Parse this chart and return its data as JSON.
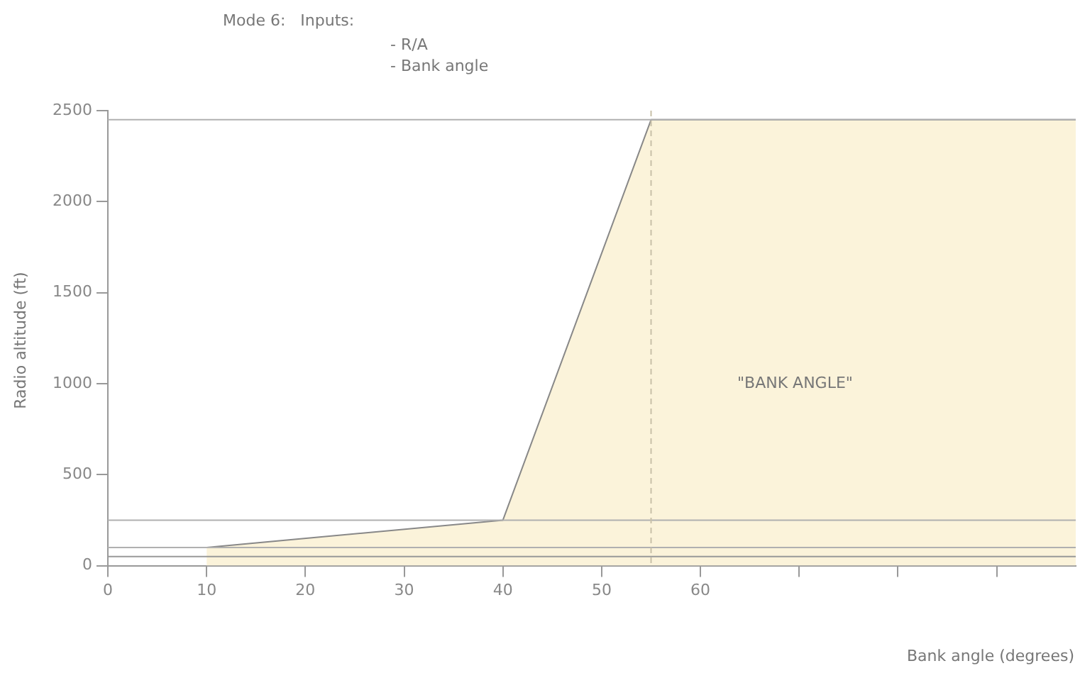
{
  "chart_data": {
    "type": "area",
    "title": "Mode 6:   Inputs:",
    "subtitle": "- R/A\n- Bank angle",
    "xlabel": "Bank angle (degrees)",
    "ylabel": "Radio altitude (ft)",
    "xlim": [
      0,
      98
    ],
    "xticks": [
      0,
      10,
      20,
      30,
      40,
      50,
      60,
      {
        "value": 70,
        "label": null
      },
      {
        "value": 80,
        "label": null
      },
      {
        "value": 90,
        "label": null
      }
    ],
    "ylim": [
      0,
      2500
    ],
    "yticks": [
      0,
      500,
      1000,
      1500,
      2000,
      2500
    ],
    "series": [
      {
        "color": "#fbf3da",
        "x": [
          10,
          40,
          55,
          98
        ],
        "values": [
          100,
          250,
          2450,
          2450
        ]
      }
    ],
    "ref_lines": [
      {
        "axis": "y",
        "value": 50,
        "color": "#999999"
      },
      {
        "axis": "y",
        "value": 100,
        "color": "#b0b0b0"
      },
      {
        "axis": "y",
        "value": 250,
        "color": "#b0b0b0"
      },
      {
        "axis": "y",
        "value": 2450,
        "color": "#b0b0b0"
      },
      {
        "axis": "x",
        "value": 55,
        "color": "#c8c0a8",
        "line_style": "dashed"
      }
    ],
    "annotations": [
      "\"BANK ANGLE\""
    ],
    "legend": false
  }
}
